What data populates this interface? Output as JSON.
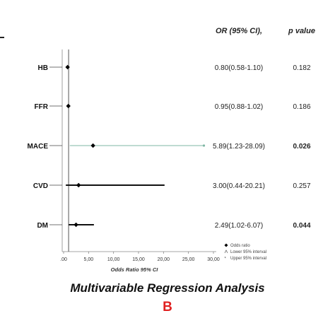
{
  "chart_data": {
    "type": "forest",
    "title": "",
    "xlabel": "Odds Ratio 95% CI",
    "xlim": [
      0,
      30
    ],
    "xticks": [
      ".00",
      "5,00",
      "10,00",
      "15,00",
      "20,00",
      "25,00",
      "30,00"
    ],
    "xtick_values": [
      0,
      5,
      10,
      15,
      20,
      25,
      30
    ],
    "reference_line": 1,
    "columns": {
      "or_header": "OR (95% CI),",
      "p_header": "p value"
    },
    "rows": [
      {
        "label": "HB",
        "or": 0.8,
        "lower": 0.58,
        "upper": 1.1,
        "or_text": "0.80(0.58-1.10)",
        "p": "0.182",
        "significant": false
      },
      {
        "label": "FFR",
        "or": 0.95,
        "lower": 0.88,
        "upper": 1.02,
        "or_text": "0.95(0.88-1.02)",
        "p": "0.186",
        "significant": false
      },
      {
        "label": "MACE",
        "or": 5.89,
        "lower": 1.23,
        "upper": 28.09,
        "or_text": "5.89(1.23-28.09)",
        "p": "0.026",
        "significant": true
      },
      {
        "label": "CVD",
        "or": 3.0,
        "lower": 0.44,
        "upper": 20.21,
        "or_text": "3.00(0.44-20.21)",
        "p": "0.257",
        "significant": false
      },
      {
        "label": "DM",
        "or": 2.49,
        "lower": 1.02,
        "upper": 6.07,
        "or_text": "2.49(1.02-6.07)",
        "p": "0.044",
        "significant": true
      }
    ],
    "legend": {
      "placement": "bottom-right",
      "entries": [
        "Odds ratio",
        "Lower 95% interval",
        "Upper 95% interval"
      ]
    }
  },
  "caption": "Multivariable Regression Analysis",
  "panel_label": "B",
  "colors": {
    "panel_label": "#e02020",
    "line": "#111111",
    "mace_line": "#7fb7a4"
  }
}
